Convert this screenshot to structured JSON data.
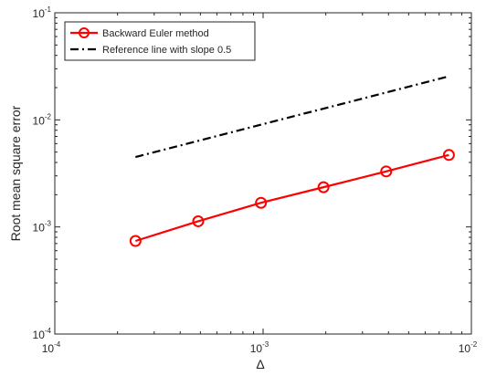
{
  "chart_data": {
    "type": "line",
    "xlabel": "Δ",
    "ylabel": "Root mean square error",
    "xscale": "log",
    "yscale": "log",
    "xlim": [
      0.0001,
      0.01
    ],
    "ylim": [
      0.0001,
      0.1
    ],
    "grid": false,
    "legend_position": "top-left",
    "x_tick_labels": [
      {
        "value": 0.0001,
        "base": "10",
        "exp": "-4"
      },
      {
        "value": 0.001,
        "base": "10",
        "exp": "-3"
      },
      {
        "value": 0.01,
        "base": "10",
        "exp": "-2"
      }
    ],
    "y_tick_labels": [
      {
        "value": 0.0001,
        "base": "10",
        "exp": "-4"
      },
      {
        "value": 0.001,
        "base": "10",
        "exp": "-3"
      },
      {
        "value": 0.01,
        "base": "10",
        "exp": "-2"
      },
      {
        "value": 0.1,
        "base": "10",
        "exp": "-1"
      }
    ],
    "series": [
      {
        "name": "Backward Euler method",
        "color": "#ff0000",
        "style": "solid",
        "marker": "circle",
        "x": [
          0.000244,
          0.000488,
          0.000977,
          0.00195,
          0.0039,
          0.0078
        ],
        "y": [
          0.00074,
          0.00113,
          0.00168,
          0.00235,
          0.0033,
          0.0047
        ]
      },
      {
        "name": "Reference line with slope 0.5",
        "color": "#000000",
        "style": "dashdot",
        "marker": "none",
        "x": [
          0.000244,
          0.0078
        ],
        "y": [
          0.0045,
          0.0255
        ]
      }
    ]
  }
}
